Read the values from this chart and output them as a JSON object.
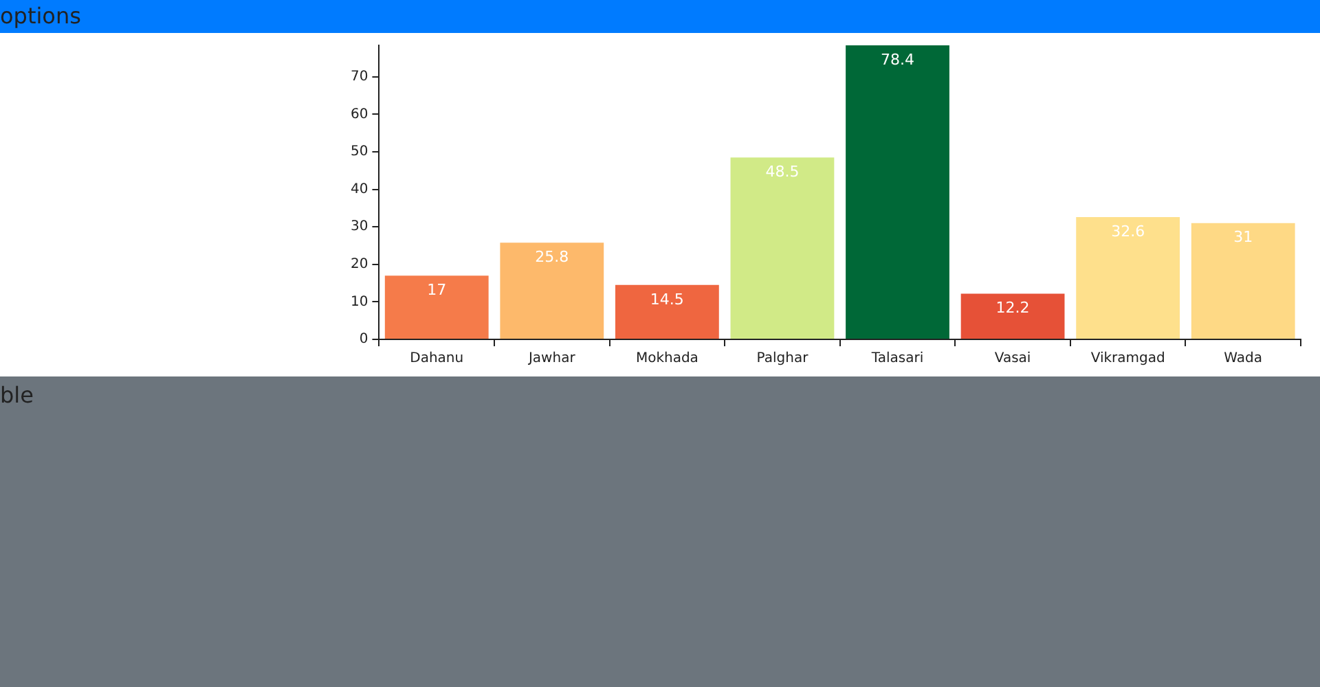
{
  "chart_data": {
    "type": "bar",
    "categories": [
      "Dahanu",
      "Jawhar",
      "Mokhada",
      "Palghar",
      "Talasari",
      "Vasai",
      "Vikramgad",
      "Wada"
    ],
    "values": [
      17,
      25.8,
      14.5,
      48.5,
      78.4,
      12.2,
      32.6,
      31
    ],
    "colors": [
      "#f57b4a",
      "#fdb96b",
      "#ef6640",
      "#d1ea87",
      "#006837",
      "#e65137",
      "#fee08c",
      "#fed985"
    ],
    "ylim": [
      0,
      78.4
    ],
    "yticks": [
      0,
      10,
      20,
      30,
      40,
      50,
      60,
      70
    ],
    "grid": false,
    "legend": false,
    "data_labels": true,
    "annotations": [
      "options",
      "ble"
    ]
  }
}
